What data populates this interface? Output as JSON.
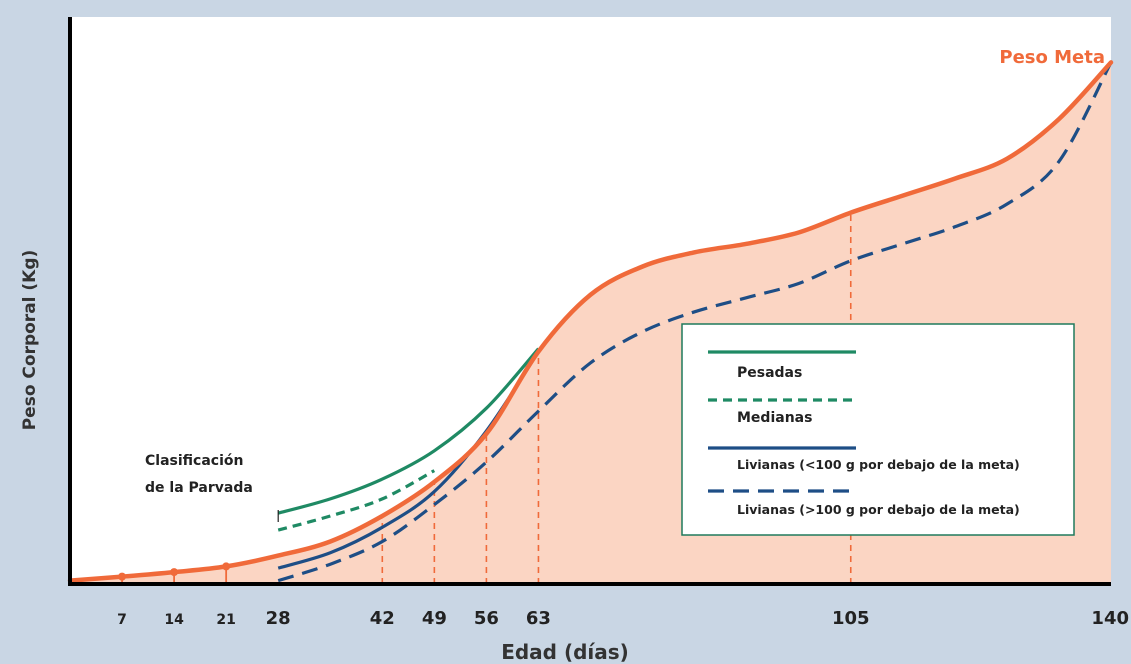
{
  "colors": {
    "background": "#c9d6e4",
    "plot_bg": "#ffffff",
    "target": "#f06a3a",
    "target_fill": "#fbd5c3",
    "heavy": "#1f8a64",
    "light": "#1e4e86",
    "legend_border": "#1f7a5c"
  },
  "chart_data": {
    "type": "line",
    "title": "",
    "xlabel": "Edad (días)",
    "ylabel": "Peso Corporal (Kg)",
    "xlim": [
      0,
      140
    ],
    "ylim": [
      0,
      1
    ],
    "x_tick_labels": [
      "7",
      "14",
      "21",
      "28",
      "42",
      "49",
      "56",
      "63",
      "105",
      "140"
    ],
    "y_ticks_shown": false,
    "grid": false,
    "legend_position": "center-right",
    "series": [
      {
        "name": "Peso Meta",
        "style": "solid-thick-filled",
        "color": "#f06a3a",
        "points": [
          [
            0,
            0.006
          ],
          [
            7,
            0.013
          ],
          [
            14,
            0.021
          ],
          [
            21,
            0.031
          ],
          [
            28,
            0.05
          ],
          [
            35,
            0.075
          ],
          [
            42,
            0.12
          ],
          [
            49,
            0.18
          ],
          [
            56,
            0.265
          ],
          [
            63,
            0.41
          ],
          [
            70,
            0.51
          ],
          [
            77,
            0.56
          ],
          [
            84,
            0.585
          ],
          [
            91,
            0.6
          ],
          [
            98,
            0.62
          ],
          [
            105,
            0.655
          ],
          [
            112,
            0.685
          ],
          [
            119,
            0.715
          ],
          [
            126,
            0.75
          ],
          [
            133,
            0.82
          ],
          [
            140,
            0.92
          ]
        ]
      },
      {
        "name": "Pesadas",
        "style": "solid",
        "color": "#1f8a64",
        "points": [
          [
            28,
            0.125
          ],
          [
            35,
            0.15
          ],
          [
            42,
            0.185
          ],
          [
            49,
            0.235
          ],
          [
            56,
            0.31
          ],
          [
            63,
            0.415
          ]
        ]
      },
      {
        "name": "Medianas",
        "style": "dashed",
        "color": "#1f8a64",
        "points": [
          [
            28,
            0.095
          ],
          [
            35,
            0.12
          ],
          [
            42,
            0.15
          ],
          [
            49,
            0.2
          ]
        ]
      },
      {
        "name": "Livianas (<100 g por debajo de la meta)",
        "style": "solid",
        "color": "#1e4e86",
        "points": [
          [
            28,
            0.028
          ],
          [
            35,
            0.055
          ],
          [
            42,
            0.1
          ],
          [
            49,
            0.163
          ],
          [
            56,
            0.27
          ],
          [
            63,
            0.41
          ]
        ]
      },
      {
        "name": "Livianas (>100 g por debajo de la meta)",
        "style": "dashed",
        "color": "#1e4e86",
        "points": [
          [
            28,
            0.006
          ],
          [
            35,
            0.035
          ],
          [
            42,
            0.075
          ],
          [
            49,
            0.14
          ],
          [
            56,
            0.215
          ],
          [
            63,
            0.305
          ],
          [
            70,
            0.39
          ],
          [
            77,
            0.445
          ],
          [
            84,
            0.48
          ],
          [
            91,
            0.505
          ],
          [
            98,
            0.53
          ],
          [
            105,
            0.57
          ],
          [
            112,
            0.6
          ],
          [
            119,
            0.63
          ],
          [
            126,
            0.67
          ],
          [
            133,
            0.745
          ],
          [
            140,
            0.92
          ]
        ]
      }
    ],
    "markers": [
      {
        "x": 7,
        "y": 0.013
      },
      {
        "x": 14,
        "y": 0.021
      },
      {
        "x": 21,
        "y": 0.031
      }
    ],
    "reference_lines_at_x": [
      42,
      49,
      56,
      63,
      105
    ],
    "annotations": {
      "target_label": "Peso Meta",
      "grading_line1": "Clasificación",
      "grading_line2": "de la Parvada",
      "grading_marker_x": 28
    },
    "legend": [
      {
        "label": "Pesadas",
        "color": "#1f8a64",
        "style": "solid"
      },
      {
        "label": "Medianas",
        "color": "#1f8a64",
        "style": "dashed"
      },
      {
        "label": "Livianas (<100 g por debajo de la meta)",
        "color": "#1e4e86",
        "style": "solid"
      },
      {
        "label": "Livianas (>100 g por debajo de la meta)",
        "color": "#1e4e86",
        "style": "dashed"
      }
    ]
  }
}
